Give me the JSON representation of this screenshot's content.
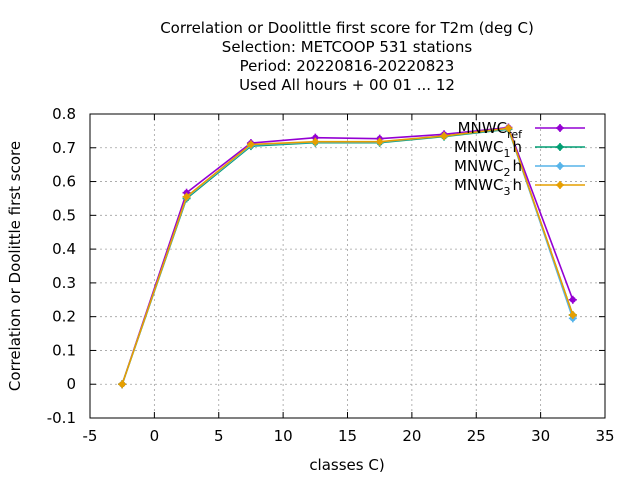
{
  "chart_data": {
    "type": "line",
    "title_lines": [
      "Correlation or Doolittle first score  for T2m (deg C)",
      "Selection: METCOOP    531 stations",
      "Period: 20220816-20220823",
      "Used  All hours + 00 01 ... 12"
    ],
    "xlabel": "classes C)",
    "ylabel": "Correlation or Doolittle first score",
    "xlim": [
      -5,
      35
    ],
    "ylim": [
      -0.1,
      0.8
    ],
    "xticks": [
      "-5",
      "0",
      "5",
      "10",
      "15",
      "20",
      "25",
      "30",
      "35"
    ],
    "yticks": [
      "-0.1",
      "0",
      "0.1",
      "0.2",
      "0.3",
      "0.4",
      "0.5",
      "0.6",
      "0.7",
      "0.8"
    ],
    "grid": true,
    "legend_position": "top-right",
    "x": [
      -2.5,
      2.5,
      7.5,
      12.5,
      17.5,
      22.5,
      27.5,
      32.5
    ],
    "series": [
      {
        "name": "MNWC_ref",
        "legend_main": "MNWC",
        "legend_sub": "ref",
        "color": "#9400d3",
        "values": [
          0.0,
          0.567,
          0.714,
          0.73,
          0.727,
          0.74,
          0.76,
          0.25
        ]
      },
      {
        "name": "MNWC_1h",
        "legend_main": "MNWC",
        "legend_sub": "1",
        "legend_suffix": "h",
        "color": "#009e73",
        "values": [
          0.0,
          0.55,
          0.705,
          0.715,
          0.715,
          0.733,
          0.755,
          0.205
        ]
      },
      {
        "name": "MNWC_2h",
        "legend_main": "MNWC",
        "legend_sub": "2",
        "legend_suffix": "h",
        "color": "#56b4e9",
        "values": [
          0.0,
          0.553,
          0.708,
          0.717,
          0.717,
          0.735,
          0.757,
          0.195
        ]
      },
      {
        "name": "MNWC_3h",
        "legend_main": "MNWC",
        "legend_sub": "3",
        "legend_suffix": "h",
        "color": "#e69f00",
        "values": [
          0.0,
          0.555,
          0.71,
          0.718,
          0.718,
          0.735,
          0.758,
          0.205
        ]
      }
    ]
  }
}
